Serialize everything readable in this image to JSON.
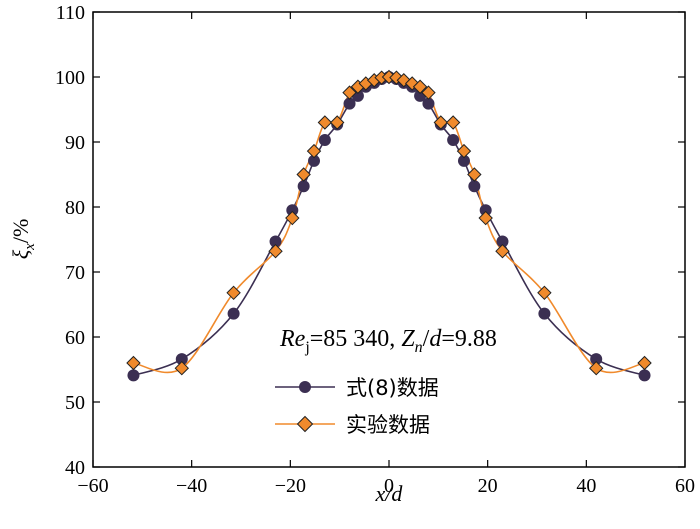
{
  "chart_data": {
    "type": "line",
    "title": "",
    "xlabel": "x/d",
    "ylabel": "ξx/%",
    "xlim": [
      -60,
      60
    ],
    "ylim": [
      40,
      110
    ],
    "xticks": [
      "−60",
      "−40",
      "−20",
      "0",
      "20",
      "40",
      "60"
    ],
    "yticks": [
      "40",
      "50",
      "60",
      "70",
      "80",
      "90",
      "100",
      "110"
    ],
    "annotation": "Rej=85 340, Zn/d=9.88",
    "legend_position": "lower-center",
    "series": [
      {
        "name": "式(8)数据",
        "marker": "circle",
        "color": "#3b2f52",
        "x": [
          -51.8,
          -42,
          -31.5,
          -23,
          -19.6,
          -17.3,
          -15.2,
          -13,
          -10.5,
          -8,
          -6.3,
          -4.7,
          -3,
          -1.5,
          0,
          1.5,
          3,
          4.7,
          6.3,
          8,
          10.5,
          13,
          15.2,
          17.3,
          19.6,
          23,
          31.5,
          42,
          51.8
        ],
        "y": [
          54.1,
          56.6,
          63.6,
          74.7,
          79.5,
          83.2,
          87.1,
          90.3,
          92.7,
          95.9,
          97.1,
          98.5,
          99.1,
          99.7,
          100,
          99.7,
          99.1,
          98.5,
          97.1,
          95.9,
          92.7,
          90.3,
          87.1,
          83.2,
          79.5,
          74.7,
          63.6,
          56.6,
          54.1
        ]
      },
      {
        "name": "实验数据",
        "marker": "diamond",
        "color": "#f08a2c",
        "x": [
          -51.8,
          -42,
          -31.5,
          -23,
          -19.6,
          -17.3,
          -15.2,
          -13,
          -10.5,
          -8,
          -6.3,
          -4.7,
          -3,
          -1.5,
          0,
          1.5,
          3,
          4.7,
          6.3,
          8,
          10.5,
          13,
          15.2,
          17.3,
          19.6,
          23,
          31.5,
          42,
          51.8
        ],
        "y": [
          56,
          55.2,
          66.8,
          73.2,
          78.3,
          85,
          88.6,
          93,
          93,
          97.6,
          98.5,
          99,
          99.5,
          99.9,
          100,
          99.9,
          99.5,
          99,
          98.5,
          97.6,
          93,
          93,
          88.6,
          85,
          78.3,
          73.2,
          66.8,
          55.2,
          56
        ]
      }
    ]
  }
}
